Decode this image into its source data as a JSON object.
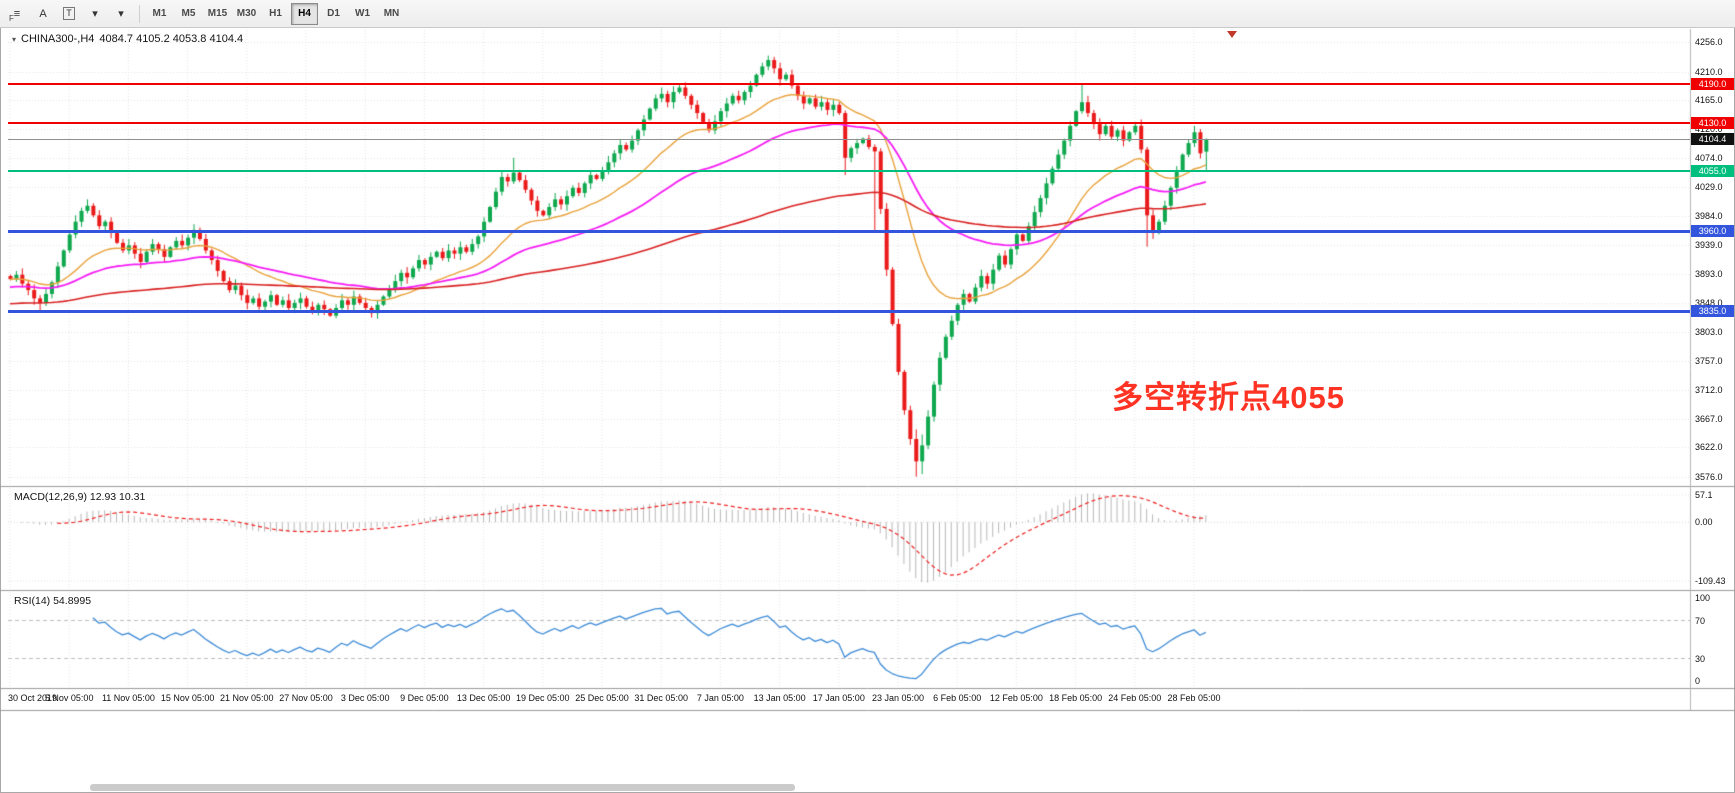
{
  "toolbar": {
    "fibo_label": "F",
    "tools": [
      {
        "id": "line-studies",
        "glyph": "≡"
      },
      {
        "id": "text",
        "glyph": "A"
      },
      {
        "id": "text-label",
        "glyph": "T",
        "boxed": true
      },
      {
        "id": "arrow-style",
        "glyph": "▾"
      },
      {
        "id": "shapes",
        "glyph": "▾"
      }
    ],
    "timeframes": [
      "M1",
      "M5",
      "M15",
      "M30",
      "H1",
      "H4",
      "D1",
      "W1",
      "MN"
    ],
    "active_timeframe": "H4"
  },
  "chart": {
    "title": "CHINA300-,H4",
    "ohlc": "4084.7 4105.2 4053.8 4104.4"
  },
  "indicators": {
    "macd": {
      "title": "MACD(12,26,9) 12.93 10.31"
    },
    "rsi": {
      "title": "RSI(14) 54.8995"
    }
  },
  "annotation": {
    "text": "多空转折点4055",
    "color": "#FF3323"
  },
  "chart_data": {
    "type": "candlestick",
    "symbol": "CHINA300-",
    "timeframe": "H4",
    "current_ohlc": [
      4084.7,
      4105.2,
      4053.8,
      4104.4
    ],
    "ylim": [
      3563,
      4275
    ],
    "y_tick_labels": [
      "4256.0",
      "4210.0",
      "4165.0",
      "4120.0",
      "4074.0",
      "4029.0",
      "3984.0",
      "3939.0",
      "3893.0",
      "3848.0",
      "3803.0",
      "3757.0",
      "3712.0",
      "3667.0",
      "3622.0",
      "3576.0"
    ],
    "x_tick_labels": [
      "30 Oct 2019",
      "5 Nov 05:00",
      "11 Nov 05:00",
      "15 Nov 05:00",
      "21 Nov 05:00",
      "27 Nov 05:00",
      "3 Dec 05:00",
      "9 Dec 05:00",
      "13 Dec 05:00",
      "19 Dec 05:00",
      "25 Dec 05:00",
      "31 Dec 05:00",
      "7 Jan 05:00",
      "13 Jan 05:00",
      "17 Jan 05:00",
      "23 Jan 05:00",
      "6 Feb 05:00",
      "12 Feb 05:00",
      "18 Feb 05:00",
      "24 Feb 05:00",
      "28 Feb 05:00"
    ],
    "first_open": 3890,
    "closes": [
      3885,
      3892,
      3878,
      3868,
      3855,
      3848,
      3862,
      3880,
      3905,
      3930,
      3955,
      3975,
      3992,
      4000,
      3985,
      3968,
      3975,
      3958,
      3942,
      3930,
      3938,
      3925,
      3912,
      3928,
      3940,
      3932,
      3920,
      3935,
      3945,
      3938,
      3950,
      3962,
      3948,
      3930,
      3915,
      3898,
      3882,
      3868,
      3875,
      3860,
      3848,
      3855,
      3842,
      3850,
      3860,
      3845,
      3852,
      3840,
      3848,
      3855,
      3842,
      3835,
      3845,
      3838,
      3828,
      3840,
      3852,
      3845,
      3858,
      3848,
      3840,
      3832,
      3845,
      3858,
      3870,
      3882,
      3895,
      3888,
      3902,
      3915,
      3908,
      3920,
      3928,
      3918,
      3930,
      3925,
      3935,
      3928,
      3940,
      3952,
      3975,
      3998,
      4022,
      4045,
      4038,
      4052,
      4040,
      4025,
      4008,
      3992,
      3985,
      3998,
      4010,
      4002,
      4015,
      4028,
      4020,
      4035,
      4048,
      4042,
      4055,
      4068,
      4082,
      4095,
      4088,
      4102,
      4118,
      4135,
      4152,
      4168,
      4175,
      4162,
      4178,
      4185,
      4172,
      4158,
      4145,
      4130,
      4118,
      4132,
      4148,
      4160,
      4172,
      4165,
      4178,
      4188,
      4205,
      4218,
      4228,
      4215,
      4198,
      4205,
      4188,
      4172,
      4160,
      4168,
      4155,
      4162,
      4150,
      4158,
      4145,
      4075,
      4090,
      4098,
      4105,
      4092,
      4085,
      3995,
      3900,
      3815,
      3740,
      3680,
      3635,
      3600,
      3625,
      3670,
      3720,
      3762,
      3795,
      3820,
      3845,
      3862,
      3850,
      3872,
      3890,
      3878,
      3900,
      3922,
      3908,
      3932,
      3955,
      3945,
      3968,
      3990,
      4012,
      4035,
      4058,
      4080,
      4102,
      4125,
      4148,
      4162,
      4145,
      4128,
      4112,
      4125,
      4108,
      4118,
      4102,
      4115,
      4125,
      4088,
      3985,
      3958,
      3975,
      4000,
      4028,
      4055,
      4080,
      4098,
      4115,
      4082,
      4104.4
    ],
    "candle_overrides": {
      "5": [
        3855,
        3860,
        3834,
        3848
      ],
      "13": [
        3992,
        4010,
        3988,
        4000
      ],
      "85": [
        4038,
        4075,
        4034,
        4052
      ],
      "128": [
        4218,
        4235,
        4212,
        4228
      ],
      "141": [
        4145,
        4149,
        4048,
        4075
      ],
      "146": [
        4092,
        4096,
        3958,
        4085
      ],
      "153": [
        3635,
        3650,
        3576,
        3600
      ],
      "154": [
        3600,
        3642,
        3580,
        3625
      ],
      "181": [
        4148,
        4190,
        4144,
        4162
      ],
      "192": [
        4088,
        4092,
        3936,
        3985
      ],
      "202": [
        4084.7,
        4105.2,
        4053.8,
        4104.4
      ]
    },
    "moving_averages": [
      {
        "name": "fast",
        "period": 21,
        "color": "#E8A33D",
        "width": 1.4,
        "seed": null
      },
      {
        "name": "medium",
        "period": 48,
        "color": "#F51DF5",
        "width": 1.8,
        "seed": 3872
      },
      {
        "name": "slow",
        "period": 150,
        "color": "#D92121",
        "width": 1.6,
        "seed": 3846
      }
    ],
    "levels": [
      {
        "price": 4190,
        "label": "4190.0",
        "color": "#F00000",
        "thickness": 2
      },
      {
        "price": 4130,
        "label": "4130.0",
        "color": "#F00000",
        "thickness": 2
      },
      {
        "price": 4055,
        "label": "4055.0",
        "color": "#00BE7D",
        "thickness": 2
      },
      {
        "price": 3960,
        "label": "3960.0",
        "color": "#3355DD",
        "thickness": 3
      },
      {
        "price": 3835,
        "label": "3835.0",
        "color": "#3355DD",
        "thickness": 3
      }
    ],
    "current_price": {
      "value": 4104.4,
      "label": "4104.4",
      "line_color": "#8f8f8f",
      "tag_color": "#111111"
    },
    "colors": {
      "up": "#0FA84E",
      "down": "#EA1A1A",
      "grid": "#E4E4E4",
      "macd_hist": "#B8B8B8",
      "macd_signal": "#EE2222",
      "rsi_line": "#3E8BD6",
      "band": "#BDBDBD"
    },
    "macd": {
      "fast": 12,
      "slow": 26,
      "signal": 9,
      "values_text": [
        12.93,
        10.31
      ],
      "y_tick_labels": [
        "57.1",
        "0.00",
        "-109.43"
      ]
    },
    "rsi": {
      "period": 14,
      "last_value": 54.8995,
      "y_tick_labels": [
        "100",
        "70",
        "30",
        "0"
      ],
      "bands": [
        70,
        30
      ]
    }
  }
}
